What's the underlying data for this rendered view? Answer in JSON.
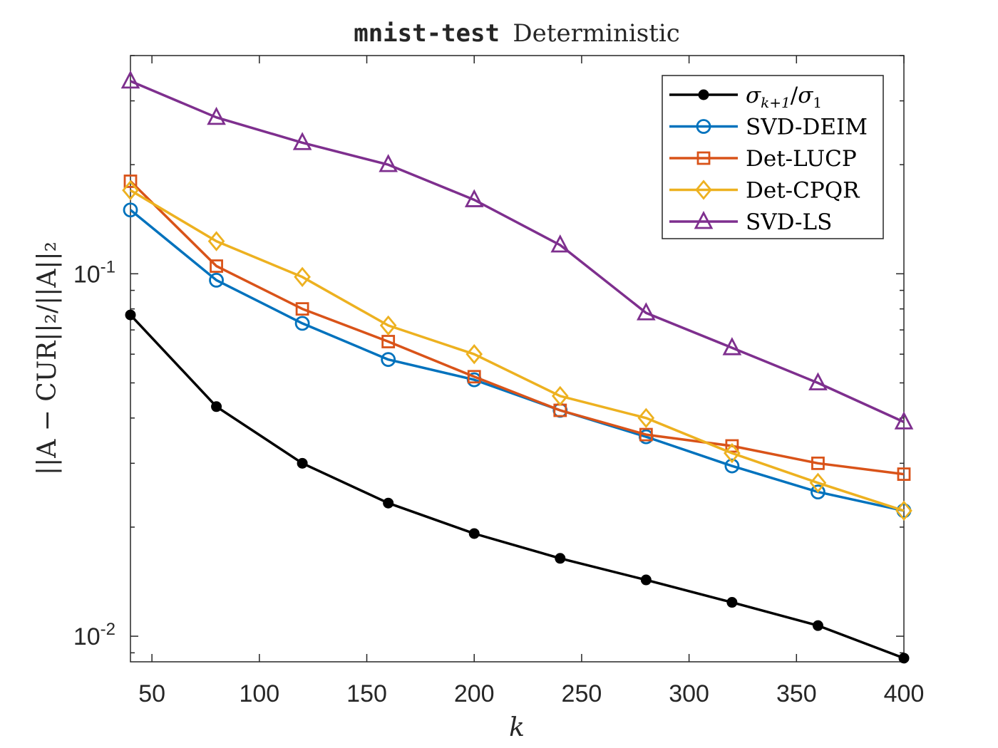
{
  "chart_data": {
    "type": "line",
    "title_code": "mnist-test",
    "title_text": "Deterministic",
    "xlabel": "k",
    "ylabel": "||A − CUR||₂/||A||₂",
    "x": [
      40,
      80,
      120,
      160,
      200,
      240,
      280,
      320,
      360,
      400
    ],
    "xlim": [
      40,
      400
    ],
    "ylim": [
      0.0085,
      0.4
    ],
    "yscale": "log",
    "xticks": [
      50,
      100,
      150,
      200,
      250,
      300,
      350,
      400
    ],
    "yticks_major": [
      {
        "value": 0.01,
        "base": "10",
        "exp": "-2"
      },
      {
        "value": 0.1,
        "base": "10",
        "exp": "-1"
      }
    ],
    "grid": false,
    "legend_position": "top-right",
    "series": [
      {
        "name": "σ_{k+1}/σ_1",
        "legend": {
          "sigma1": "σ",
          "sub1": "k+1",
          "slash": "/",
          "sigma2": "σ",
          "sub2": "1"
        },
        "marker": "dot",
        "color": "#000000",
        "values": [
          0.077,
          0.043,
          0.03,
          0.0233,
          0.0192,
          0.0164,
          0.0143,
          0.0124,
          0.0107,
          0.0087
        ]
      },
      {
        "name": "SVD-DEIM",
        "marker": "circle",
        "color": "#0072BD",
        "values": [
          0.15,
          0.096,
          0.073,
          0.058,
          0.051,
          0.042,
          0.0355,
          0.0295,
          0.025,
          0.0222
        ]
      },
      {
        "name": "Det-LUCP",
        "marker": "square",
        "color": "#D95319",
        "values": [
          0.18,
          0.105,
          0.08,
          0.065,
          0.052,
          0.042,
          0.036,
          0.0335,
          0.03,
          0.028
        ]
      },
      {
        "name": "Det-CPQR",
        "marker": "diamond",
        "color": "#EDB120",
        "values": [
          0.17,
          0.123,
          0.098,
          0.072,
          0.06,
          0.046,
          0.04,
          0.032,
          0.0265,
          0.0222
        ]
      },
      {
        "name": "SVD-LS",
        "marker": "triangle",
        "color": "#7E2F8E",
        "values": [
          0.34,
          0.27,
          0.23,
          0.2,
          0.16,
          0.12,
          0.078,
          0.0625,
          0.05,
          0.039
        ]
      }
    ]
  }
}
